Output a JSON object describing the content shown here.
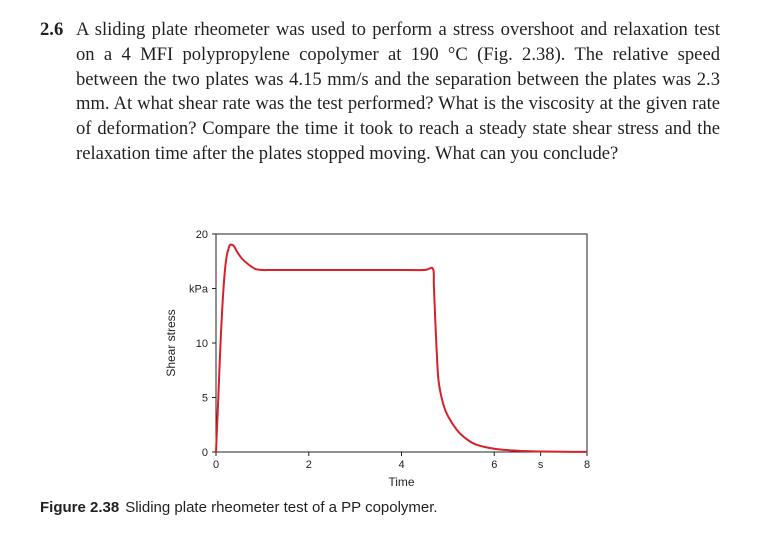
{
  "problem": {
    "number": "2.6",
    "text": "A sliding plate rheometer was used to perform a stress overshoot and relaxation test on a 4 MFI polypropylene copolymer at 190 °C (Fig. 2.38). The relative speed between the two plates was 4.15 mm/s and the separation between the plates was 2.3 mm. At what shear rate was the test performed? What is the viscosity at the given rate of deformation? Compare the time it took to reach a steady state shear stress and the relaxation time after the plates stopped moving. What can you conclude?"
  },
  "caption": {
    "label": "Figure 2.38",
    "text": "Sliding plate rheometer test of a PP copolymer."
  },
  "chart_data": {
    "type": "line",
    "xlabel": "Time",
    "ylabel": "Shear stress",
    "xlim": [
      0,
      8
    ],
    "ylim": [
      0,
      20
    ],
    "x_ticks": [
      {
        "value": 0,
        "label": "0"
      },
      {
        "value": 2,
        "label": "2"
      },
      {
        "value": 4,
        "label": "4"
      },
      {
        "value": 6,
        "label": "6"
      },
      {
        "value": 7,
        "label": "s"
      },
      {
        "value": 8,
        "label": "8"
      }
    ],
    "y_ticks": [
      {
        "value": 0,
        "label": "0"
      },
      {
        "value": 5,
        "label": "5"
      },
      {
        "value": 10,
        "label": "10"
      },
      {
        "value": 15,
        "label": "kPa"
      },
      {
        "value": 20,
        "label": "20"
      }
    ],
    "grid": false,
    "series": [
      {
        "color": "#d7202a",
        "x": [
          0,
          0.05,
          0.12,
          0.2,
          0.28,
          0.35,
          0.4,
          0.45,
          0.55,
          0.7,
          0.85,
          1.0,
          1.2,
          1.5,
          2.0,
          3.0,
          3.8,
          4.0,
          4.5,
          4.68,
          4.7,
          4.75,
          4.8,
          4.9,
          5.0,
          5.2,
          5.4,
          5.6,
          6.0,
          6.5,
          7.0,
          7.5,
          8.0
        ],
        "y": [
          0,
          5,
          12,
          17,
          18.8,
          19.0,
          18.8,
          18.4,
          17.8,
          17.2,
          16.8,
          16.7,
          16.7,
          16.7,
          16.7,
          16.7,
          16.7,
          16.7,
          16.7,
          16.8,
          15.0,
          10.0,
          6.5,
          4.4,
          3.3,
          2.0,
          1.2,
          0.7,
          0.3,
          0.12,
          0.05,
          0.02,
          0.01
        ]
      }
    ]
  }
}
